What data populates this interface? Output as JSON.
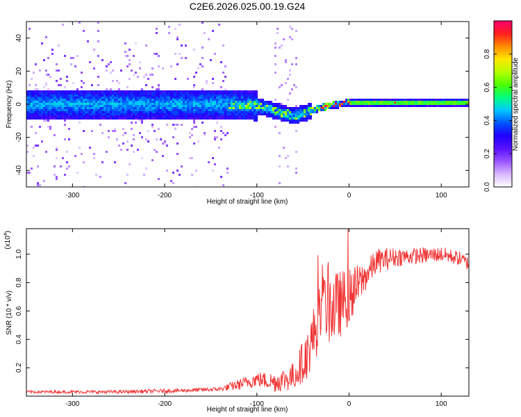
{
  "title": "C2E6.2026.025.00.19.G24",
  "chart_data": [
    {
      "type": "heatmap",
      "xlabel": "Height of straight line (km)",
      "ylabel": "Frequency (Hz)",
      "xlim": [
        -350,
        130
      ],
      "ylim": [
        -50,
        50
      ],
      "xticks": [
        -300,
        -200,
        -100,
        0,
        100
      ],
      "yticks": [
        -40,
        -20,
        0,
        20,
        40
      ],
      "ridge_frequency_hz": [
        {
          "x": -350,
          "y": 0
        },
        {
          "x": -130,
          "y": 0
        },
        {
          "x": -100,
          "y": -1
        },
        {
          "x": -80,
          "y": -4
        },
        {
          "x": -60,
          "y": -7
        },
        {
          "x": -45,
          "y": -5
        },
        {
          "x": -30,
          "y": -2
        },
        {
          "x": -10,
          "y": 0
        },
        {
          "x": 0,
          "y": 1
        },
        {
          "x": 50,
          "y": 1
        },
        {
          "x": 130,
          "y": 1
        }
      ],
      "colorbar": {
        "label": "Normalized spectral amplitude",
        "range": [
          0,
          1
        ],
        "ticks": [
          "0.0",
          "0.2",
          "0.4",
          "0.6",
          "0.8"
        ],
        "colors": [
          "#ffffff",
          "#d9b8ff",
          "#9a55ff",
          "#5a12ff",
          "#2000ff",
          "#0055ff",
          "#00c8ff",
          "#00ff80",
          "#4cff00",
          "#b4ff00",
          "#ffe600",
          "#ff8c00",
          "#ff1e1e",
          "#ff0070"
        ]
      }
    },
    {
      "type": "line",
      "xlabel": "Height of straight line (km)",
      "ylabel": "SNR (10 * v/v)",
      "multiplier": "(x10",
      "multiplier_exp": "4",
      "multiplier_close": ")",
      "xlim": [
        -350,
        130
      ],
      "ylim": [
        0,
        1.18
      ],
      "xticks": [
        -300,
        -200,
        -100,
        0,
        100
      ],
      "yticks": [
        "0.2",
        "0.4",
        "0.6",
        "0.8",
        "1.0"
      ],
      "color": "#f03434",
      "envelope": [
        {
          "x": -350,
          "y": 0.03
        },
        {
          "x": -250,
          "y": 0.03
        },
        {
          "x": -180,
          "y": 0.04
        },
        {
          "x": -140,
          "y": 0.05
        },
        {
          "x": -120,
          "y": 0.08
        },
        {
          "x": -100,
          "y": 0.12
        },
        {
          "x": -80,
          "y": 0.1
        },
        {
          "x": -60,
          "y": 0.14
        },
        {
          "x": -45,
          "y": 0.3
        },
        {
          "x": -35,
          "y": 0.5
        },
        {
          "x": -25,
          "y": 0.65
        },
        {
          "x": -15,
          "y": 0.62
        },
        {
          "x": 0,
          "y": 0.7
        },
        {
          "x": 15,
          "y": 0.82
        },
        {
          "x": 30,
          "y": 0.95
        },
        {
          "x": 50,
          "y": 0.98
        },
        {
          "x": 80,
          "y": 0.99
        },
        {
          "x": 100,
          "y": 1.0
        },
        {
          "x": 120,
          "y": 0.97
        },
        {
          "x": 130,
          "y": 0.93
        }
      ],
      "noise_amplitude": [
        {
          "x": -350,
          "y": 0.01
        },
        {
          "x": -140,
          "y": 0.015
        },
        {
          "x": -120,
          "y": 0.04
        },
        {
          "x": -90,
          "y": 0.06
        },
        {
          "x": -60,
          "y": 0.1
        },
        {
          "x": -40,
          "y": 0.2
        },
        {
          "x": -20,
          "y": 0.28
        },
        {
          "x": 0,
          "y": 0.2
        },
        {
          "x": 20,
          "y": 0.1
        },
        {
          "x": 60,
          "y": 0.06
        },
        {
          "x": 130,
          "y": 0.05
        }
      ]
    }
  ]
}
